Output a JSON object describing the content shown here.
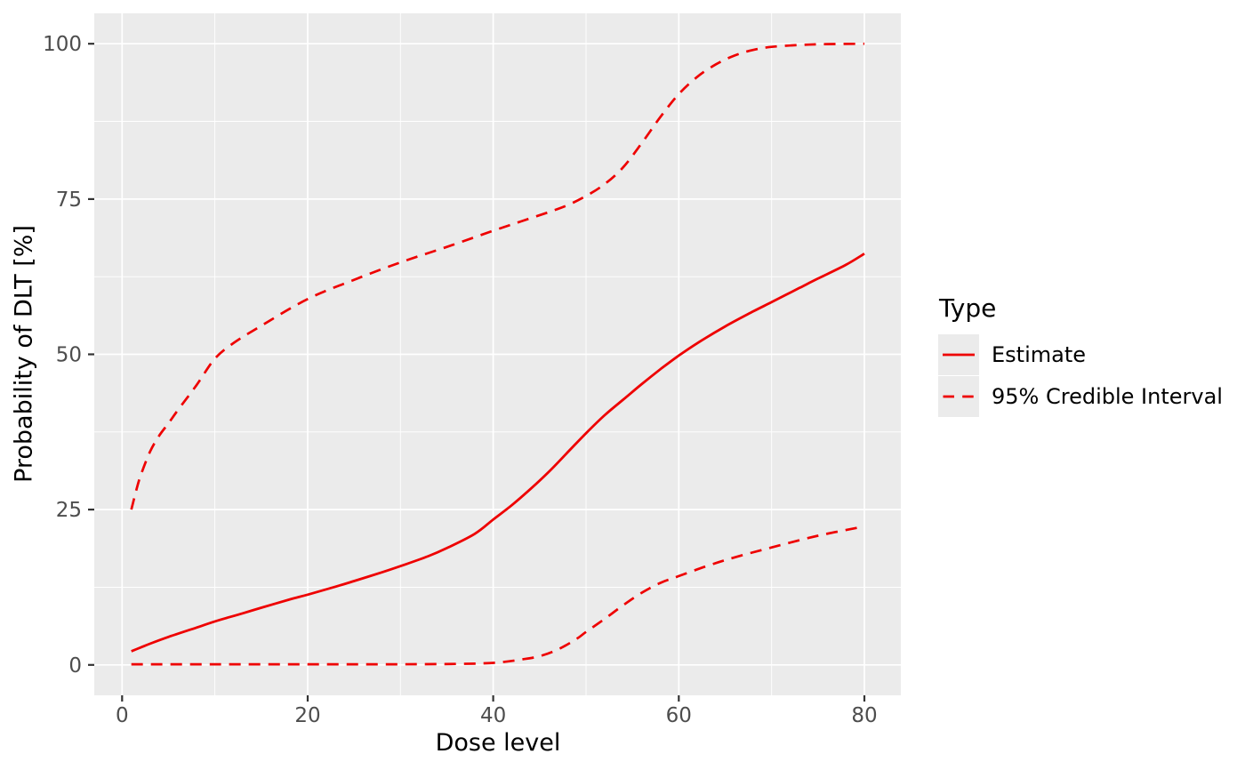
{
  "chart_data": {
    "type": "line",
    "title": "",
    "xlabel": "Dose level",
    "ylabel": "Probability of DLT [%]",
    "x_ticks": [
      0,
      20,
      40,
      60,
      80
    ],
    "x_minor": [
      10,
      30,
      50,
      70
    ],
    "y_ticks": [
      0,
      25,
      50,
      75,
      100
    ],
    "y_minor": [
      12.5,
      37.5,
      62.5,
      87.5
    ],
    "xlim": [
      -3,
      83.93
    ],
    "ylim": [
      -4.9,
      104.9
    ],
    "grid": "on",
    "series": [
      {
        "name": "Estimate",
        "style": "solid",
        "color": "#EE0000",
        "points": [
          [
            1,
            2.2
          ],
          [
            2,
            2.8
          ],
          [
            3,
            3.4
          ],
          [
            5,
            4.5
          ],
          [
            8,
            6.0
          ],
          [
            10,
            7.0
          ],
          [
            13,
            8.3
          ],
          [
            15,
            9.2
          ],
          [
            18,
            10.5
          ],
          [
            20,
            11.3
          ],
          [
            23,
            12.6
          ],
          [
            25,
            13.5
          ],
          [
            28,
            14.9
          ],
          [
            30,
            15.9
          ],
          [
            33,
            17.5
          ],
          [
            35,
            18.8
          ],
          [
            38,
            21.1
          ],
          [
            40,
            23.4
          ],
          [
            42,
            25.7
          ],
          [
            44,
            28.3
          ],
          [
            46,
            31.1
          ],
          [
            48,
            34.2
          ],
          [
            50,
            37.3
          ],
          [
            52,
            40.2
          ],
          [
            54,
            42.7
          ],
          [
            56,
            45.2
          ],
          [
            58,
            47.6
          ],
          [
            60,
            49.8
          ],
          [
            62,
            51.8
          ],
          [
            65,
            54.5
          ],
          [
            68,
            56.9
          ],
          [
            70,
            58.4
          ],
          [
            73,
            60.7
          ],
          [
            75,
            62.2
          ],
          [
            78,
            64.4
          ],
          [
            80,
            66.2
          ]
        ]
      },
      {
        "name": "95% Credible Interval upper bound",
        "style": "dashed",
        "color": "#EE0000",
        "points": [
          [
            1,
            25
          ],
          [
            1.5,
            28
          ],
          [
            2,
            30.5
          ],
          [
            3,
            34.3
          ],
          [
            4,
            36.9
          ],
          [
            5,
            38.9
          ],
          [
            6,
            41
          ],
          [
            8,
            45
          ],
          [
            10,
            49.3
          ],
          [
            12,
            51.8
          ],
          [
            15,
            54.6
          ],
          [
            20,
            58.9
          ],
          [
            25,
            62
          ],
          [
            30,
            64.8
          ],
          [
            35,
            67.3
          ],
          [
            40,
            69.9
          ],
          [
            43,
            71.4
          ],
          [
            46,
            72.9
          ],
          [
            48,
            74
          ],
          [
            50,
            75.5
          ],
          [
            52,
            77.4
          ],
          [
            54,
            80.1
          ],
          [
            56,
            84
          ],
          [
            58,
            88.2
          ],
          [
            60,
            91.9
          ],
          [
            62,
            94.7
          ],
          [
            64,
            96.7
          ],
          [
            66,
            98.1
          ],
          [
            68,
            99
          ],
          [
            70,
            99.5
          ],
          [
            73,
            99.8
          ],
          [
            76,
            99.95
          ],
          [
            80,
            100
          ]
        ]
      },
      {
        "name": "95% Credible Interval lower bound",
        "style": "dashed",
        "color": "#EE0000",
        "points": [
          [
            1,
            0.1
          ],
          [
            10,
            0.1
          ],
          [
            20,
            0.1
          ],
          [
            30,
            0.1
          ],
          [
            36,
            0.15
          ],
          [
            39,
            0.25
          ],
          [
            41,
            0.45
          ],
          [
            43,
            0.85
          ],
          [
            45,
            1.4
          ],
          [
            47,
            2.5
          ],
          [
            49,
            4.2
          ],
          [
            50,
            5.3
          ],
          [
            52,
            7.4
          ],
          [
            54,
            9.6
          ],
          [
            56,
            11.6
          ],
          [
            58,
            13.2
          ],
          [
            60,
            14.3
          ],
          [
            63,
            15.9
          ],
          [
            66,
            17.3
          ],
          [
            70,
            18.9
          ],
          [
            75,
            20.8
          ],
          [
            80,
            22.3
          ]
        ]
      }
    ],
    "legend": {
      "title": "Type",
      "position": "right",
      "entries": [
        {
          "label": "Estimate",
          "style": "solid"
        },
        {
          "label": "95% Credible Interval",
          "style": "dashed"
        }
      ]
    },
    "colors": {
      "line": "#EE0000",
      "panel_bg": "#EBEBEB",
      "grid": "#FFFFFF",
      "tick_label": "#4D4D4D",
      "tick_mark": "#333333",
      "axis_title": "#000000",
      "legend_key_bg": "#EBEBEB",
      "page_bg": "#FFFFFF"
    }
  }
}
